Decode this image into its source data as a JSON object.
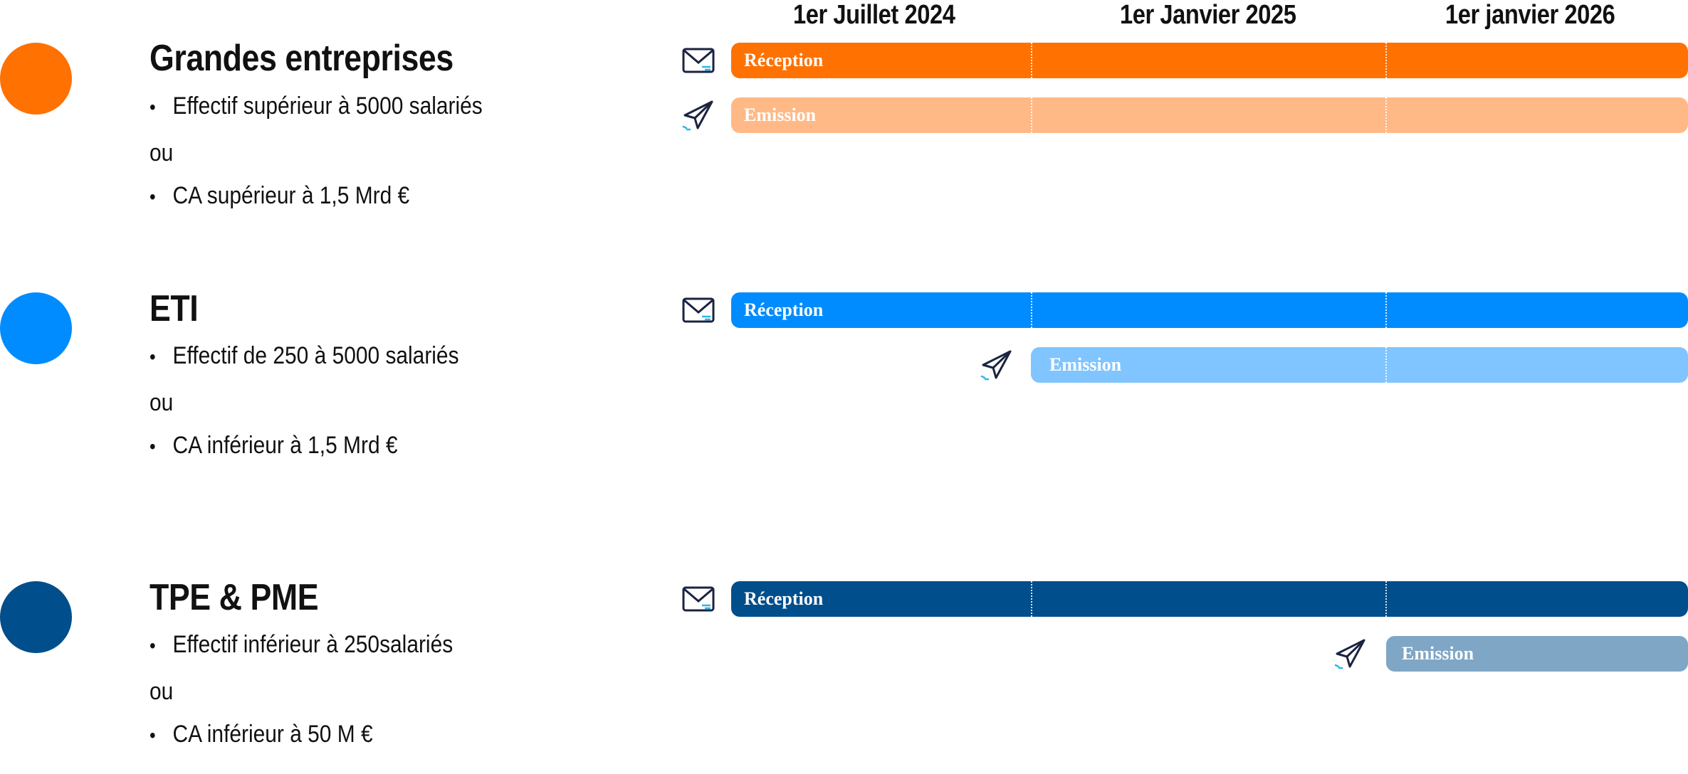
{
  "timeline": {
    "dates": [
      "1er Juillet 2024",
      "1er Janvier 2025",
      "1er janvier 2026"
    ]
  },
  "categories": [
    {
      "title": "Grandes entreprises",
      "dot_color": "#FF7100",
      "criteria": [
        "Effectif supérieur à 5000 salariés",
        "CA supérieur à 1,5 Mrd €"
      ],
      "or": "ou",
      "reception": {
        "label": "Réception",
        "color": "#FF7100",
        "start": "1er Juillet 2024"
      },
      "emission": {
        "label": "Emission",
        "color": "#FFB986",
        "start": "1er Juillet 2024"
      }
    },
    {
      "title": "ETI",
      "dot_color": "#008CFF",
      "criteria": [
        "Effectif de 250 à 5000 salariés",
        "CA inférieur à 1,5 Mrd €"
      ],
      "or": "ou",
      "reception": {
        "label": "Réception",
        "color": "#008CFF",
        "start": "1er Juillet 2024"
      },
      "emission": {
        "label": "Emission",
        "color": "#80C5FF",
        "start": "1er Janvier 2025"
      }
    },
    {
      "title": "TPE & PME",
      "dot_color": "#004E8B",
      "criteria": [
        "Effectif inférieur à 250salariés",
        "CA inférieur à 50 M €"
      ],
      "or": "ou",
      "reception": {
        "label": "Réception",
        "color": "#004E8B",
        "start": "1er Juillet 2024"
      },
      "emission": {
        "label": "Emission",
        "color": "#7FA6C5",
        "start": "1er janvier 2026"
      }
    }
  ],
  "icons": {
    "reception": "envelope-icon",
    "emission": "paper-plane-icon"
  }
}
